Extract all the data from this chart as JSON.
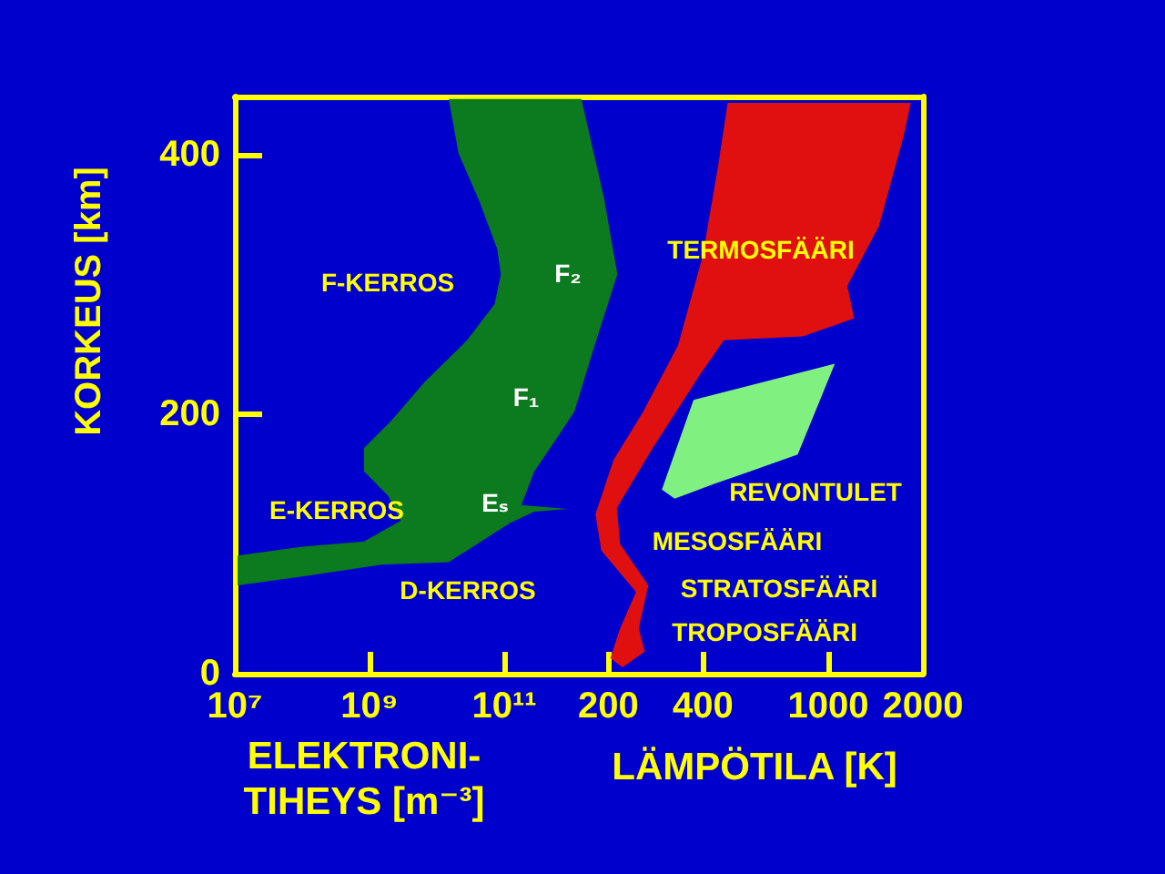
{
  "chart_data": [
    {
      "type": "area",
      "xlabel": "ELEKTRONI-\nTIHEYS [m⁻³]",
      "ylabel": "KORKEUS [km]",
      "log": "x",
      "xlim": [
        10000000.0,
        10000000000000.0
      ],
      "xticks": [
        {
          "value": 10000000.0,
          "label": "10⁷"
        },
        {
          "value": 1000000000.0,
          "label": "10⁹"
        },
        {
          "value": 100000000000.0,
          "label": "10¹¹"
        }
      ],
      "ylim": [
        0,
        445
      ],
      "yticks": [
        0,
        200,
        400
      ],
      "series": [
        {
          "color": "#0c7a1e",
          "x": [
            15000000000.0,
            21000000000.0,
            43000000000.0,
            79000000000.0,
            89000000000.0,
            72000000000.0,
            28000000000.0,
            6600000000.0,
            2100000000.0,
            830000000.0,
            830000000.0,
            1900000000.0,
            2900000000.0,
            830000000.0,
            100000000.0,
            11000000.0,
            11000000.0,
            100000000.0,
            1500000000.0,
            15000000000.0,
            120000000000.0,
            280000000000.0,
            870000000000.0,
            180000000000.0,
            280000000000.0,
            630000000000.0,
            1100000000000.0,
            2200000000000.0,
            4800000000000.0,
            3000000000000.0,
            1400000000000.0
          ],
          "values": [
            443,
            401,
            364,
            327,
            308,
            285,
            257,
            225,
            195,
            174,
            156,
            137,
            118,
            102,
            98,
            91,
            68,
            75,
            84,
            86,
            116,
            125,
            127,
            130,
            156,
            183,
            202,
            253,
            308,
            368,
            443
          ]
        }
      ],
      "annotations": [
        "F-KERROS",
        "F₂",
        "F₁",
        "Eₛ",
        "E-KERROS",
        "D-KERROS"
      ]
    },
    {
      "type": "area",
      "xlabel": "LÄMPÖTILA [K]",
      "log": "x",
      "xlim": [
        170,
        2000
      ],
      "xticks": [
        200,
        400,
        1000,
        2000
      ],
      "ylim": [
        0,
        445
      ],
      "yticks": [
        0,
        200,
        400
      ],
      "tick_labels": "x",
      "series": [
        {
          "color": "#e01010",
          "x": [
            479,
            447,
            399,
            333,
            258,
            208,
            182,
            190,
            245,
            218,
            203,
            222,
            261,
            250,
            268,
            218,
            213,
            277,
            390,
            466,
            830,
            1210,
            1150,
            1450,
            1740,
            1830
          ],
          "values": [
            440,
            392,
            322,
            253,
            202,
            165,
            123,
            95,
            63,
            35,
            12,
            5,
            17,
            35,
            68,
            100,
            128,
            174,
            230,
            257,
            260,
            274,
            299,
            345,
            415,
            440
          ]
        },
        {
          "color": "#80f080",
          "x": [
            296,
            373,
            1050,
            800,
            565,
            430,
            325
          ],
          "values": [
            142,
            211,
            239,
            169,
            156,
            146,
            135
          ]
        }
      ],
      "annotations": [
        "TERMOSFÄÄRI",
        "REVONTULET",
        "MESOSFÄÄRI",
        "STRATOSFÄÄRI",
        "TROPOSFÄÄRI"
      ]
    }
  ]
}
